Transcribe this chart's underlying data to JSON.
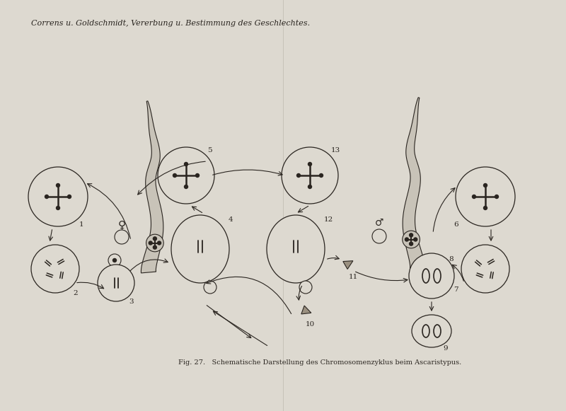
{
  "bg_color": "#ddd9d0",
  "line_color": "#2a2520",
  "title_text": "Correns u. Goldschmidt, Vererbung u. Bestimmung des Geschlechtes.",
  "caption_text": "Fig. 27.   Schematische Darstellung des Chromosomenzyklus beim Ascaristypus.",
  "page_width": 8.0,
  "page_height": 5.81
}
